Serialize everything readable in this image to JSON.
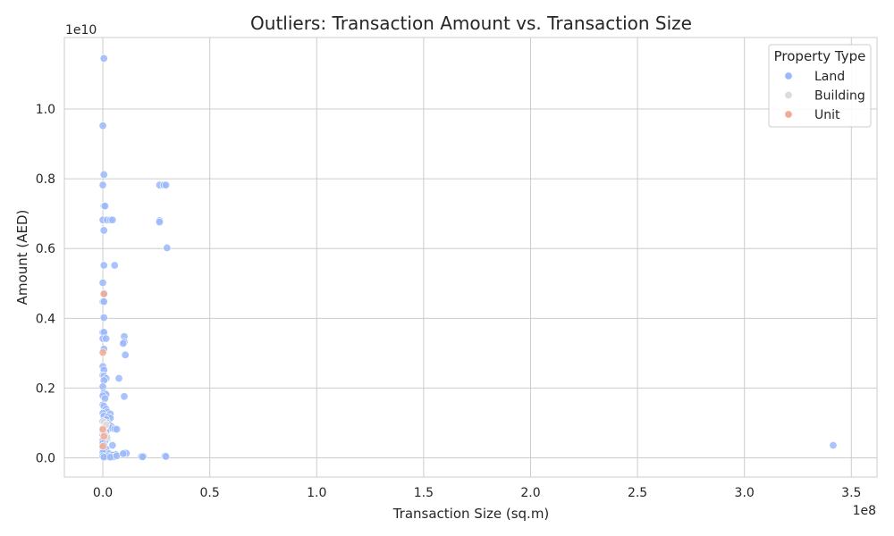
{
  "chart_data": {
    "type": "scatter",
    "title": "Outliers: Transaction Amount vs. Transaction Size",
    "xlabel": "Transaction Size (sq.m)",
    "ylabel": "Amount (AED)",
    "x_multiplier": "1e8",
    "y_multiplier": "1e10",
    "xlim": [
      -0.18,
      3.62
    ],
    "ylim": [
      -0.055,
      1.205
    ],
    "x_ticks": [
      0.0,
      0.5,
      1.0,
      1.5,
      2.0,
      2.5,
      3.0,
      3.5
    ],
    "x_tick_labels": [
      "0.0",
      "0.5",
      "1.0",
      "1.5",
      "2.0",
      "2.5",
      "3.0",
      "3.5"
    ],
    "y_ticks": [
      0.0,
      0.2,
      0.4,
      0.6,
      0.8,
      1.0
    ],
    "y_tick_labels": [
      "0.0",
      "0.2",
      "0.4",
      "0.6",
      "0.8",
      "1.0"
    ],
    "grid": true,
    "legend": {
      "title": "Property Type",
      "placement": "top-right"
    },
    "series": [
      {
        "name": "Land",
        "color": "#9bb9f9",
        "points": [
          [
            0.005,
            1.145
          ],
          [
            0.0,
            0.952
          ],
          [
            0.005,
            0.812
          ],
          [
            0.0,
            0.782
          ],
          [
            0.005,
            0.722
          ],
          [
            0.01,
            0.722
          ],
          [
            0.0,
            0.682
          ],
          [
            0.02,
            0.682
          ],
          [
            0.035,
            0.682
          ],
          [
            0.045,
            0.682
          ],
          [
            0.005,
            0.652
          ],
          [
            0.005,
            0.552
          ],
          [
            0.055,
            0.552
          ],
          [
            0.0,
            0.502
          ],
          [
            0.005,
            0.472
          ],
          [
            0.0,
            0.448
          ],
          [
            0.005,
            0.448
          ],
          [
            0.005,
            0.402
          ],
          [
            0.0,
            0.36
          ],
          [
            0.005,
            0.36
          ],
          [
            0.0,
            0.342
          ],
          [
            0.015,
            0.342
          ],
          [
            0.005,
            0.312
          ],
          [
            0.0,
            0.262
          ],
          [
            0.005,
            0.252
          ],
          [
            0.0,
            0.236
          ],
          [
            0.005,
            0.234
          ],
          [
            0.015,
            0.228
          ],
          [
            0.005,
            0.222
          ],
          [
            0.0,
            0.204
          ],
          [
            0.005,
            0.186
          ],
          [
            0.015,
            0.182
          ],
          [
            0.0,
            0.178
          ],
          [
            0.01,
            0.17
          ],
          [
            0.0,
            0.152
          ],
          [
            0.005,
            0.148
          ],
          [
            0.015,
            0.14
          ],
          [
            0.02,
            0.132
          ],
          [
            0.0,
            0.128
          ],
          [
            0.035,
            0.126
          ],
          [
            0.005,
            0.12
          ],
          [
            0.025,
            0.118
          ],
          [
            0.035,
            0.114
          ],
          [
            0.015,
            0.11
          ],
          [
            0.0,
            0.104
          ],
          [
            0.02,
            0.1
          ],
          [
            0.03,
            0.095
          ],
          [
            0.04,
            0.09
          ],
          [
            0.005,
            0.088
          ],
          [
            0.035,
            0.085
          ],
          [
            0.055,
            0.083
          ],
          [
            0.065,
            0.082
          ],
          [
            0.0,
            0.078
          ],
          [
            0.015,
            0.076
          ],
          [
            0.0,
            0.066
          ],
          [
            0.005,
            0.06
          ],
          [
            0.02,
            0.055
          ],
          [
            0.0,
            0.05
          ],
          [
            0.01,
            0.048
          ],
          [
            0.0,
            0.042
          ],
          [
            0.045,
            0.036
          ],
          [
            0.005,
            0.035
          ],
          [
            0.0,
            0.028
          ],
          [
            0.015,
            0.025
          ],
          [
            0.005,
            0.02
          ],
          [
            0.0,
            0.015
          ],
          [
            0.03,
            0.012
          ],
          [
            0.06,
            0.01
          ],
          [
            0.045,
            0.008
          ],
          [
            0.0,
            0.005
          ],
          [
            0.02,
            0.004
          ],
          [
            0.05,
            0.003
          ],
          [
            0.005,
            0.002
          ],
          [
            0.035,
            0.002
          ],
          [
            0.065,
            0.006
          ],
          [
            0.1,
            0.348
          ],
          [
            0.1,
            0.332
          ],
          [
            0.095,
            0.328
          ],
          [
            0.105,
            0.295
          ],
          [
            0.075,
            0.228
          ],
          [
            0.1,
            0.176
          ],
          [
            0.1,
            0.014
          ],
          [
            0.11,
            0.013
          ],
          [
            0.095,
            0.012
          ],
          [
            0.18,
            0.004
          ],
          [
            0.19,
            0.004
          ],
          [
            0.185,
            0.003
          ],
          [
            0.29,
            0.005
          ],
          [
            0.295,
            0.004
          ],
          [
            0.265,
            0.782
          ],
          [
            0.285,
            0.782
          ],
          [
            0.295,
            0.782
          ],
          [
            0.265,
            0.68
          ],
          [
            0.265,
            0.676
          ],
          [
            0.3,
            0.602
          ],
          [
            3.415,
            0.036
          ]
        ]
      },
      {
        "name": "Building",
        "color": "#dcdcdc",
        "points": [
          [
            0.005,
            0.102
          ],
          [
            0.01,
            0.09
          ],
          [
            0.015,
            0.095
          ],
          [
            0.005,
            0.07
          ],
          [
            0.02,
            0.06
          ]
        ]
      },
      {
        "name": "Unit",
        "color": "#f2ab93",
        "points": [
          [
            0.0,
            0.302
          ],
          [
            0.005,
            0.47
          ],
          [
            0.0,
            0.082
          ],
          [
            0.005,
            0.062
          ],
          [
            0.0,
            0.033
          ]
        ]
      }
    ]
  }
}
